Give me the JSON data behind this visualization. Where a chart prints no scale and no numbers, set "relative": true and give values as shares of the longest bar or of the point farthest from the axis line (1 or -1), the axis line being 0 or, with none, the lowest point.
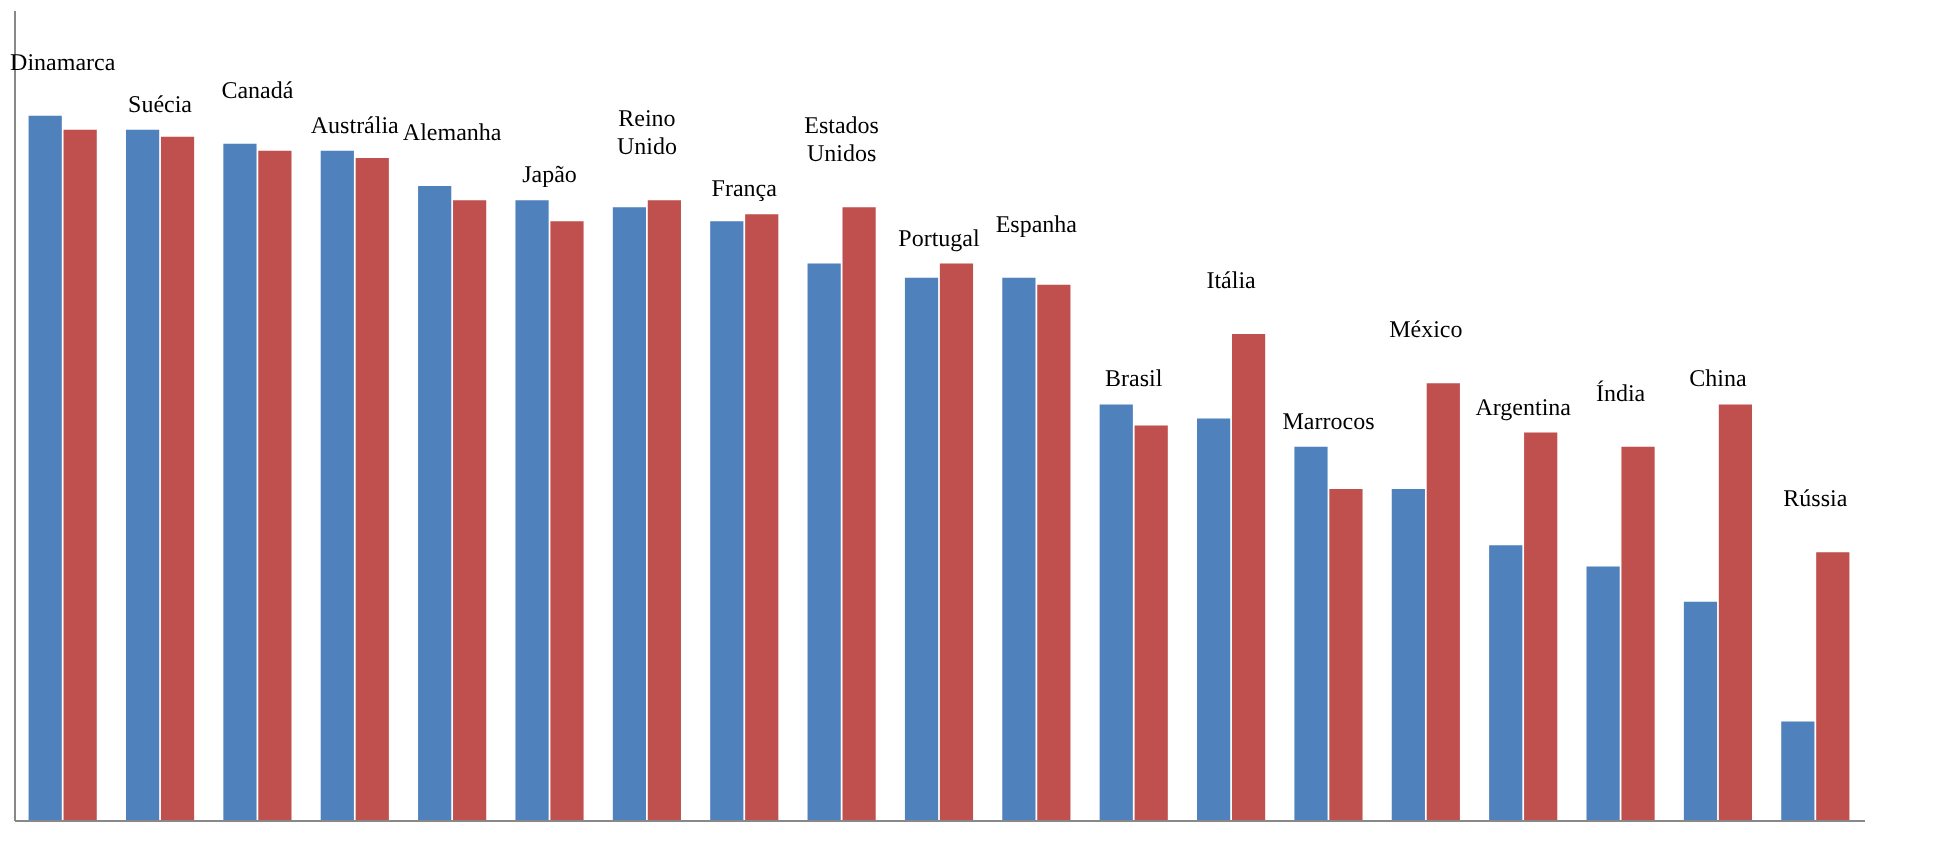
{
  "chart_data": {
    "type": "bar",
    "relative": true,
    "categories": [
      "Dinamarca",
      "Suécia",
      "Canadá",
      "Austrália",
      "Alemanha",
      "Japão",
      "Reino Unido",
      "França",
      "Estados Unidos",
      "Portugal",
      "Espanha",
      "Brasil",
      "Itália",
      "Marrocos",
      "México",
      "Argentina",
      "Índia",
      "China",
      "Rússia"
    ],
    "series": [
      {
        "color": "#4f81bd",
        "values": [
          1.0,
          0.98,
          0.96,
          0.95,
          0.9,
          0.88,
          0.87,
          0.85,
          0.79,
          0.77,
          0.77,
          0.59,
          0.57,
          0.53,
          0.47,
          0.39,
          0.36,
          0.31,
          0.14
        ]
      },
      {
        "color": "#c0504d",
        "values": [
          0.98,
          0.97,
          0.95,
          0.94,
          0.88,
          0.85,
          0.88,
          0.86,
          0.87,
          0.79,
          0.76,
          0.56,
          0.69,
          0.47,
          0.62,
          0.55,
          0.53,
          0.59,
          0.38
        ]
      }
    ]
  }
}
